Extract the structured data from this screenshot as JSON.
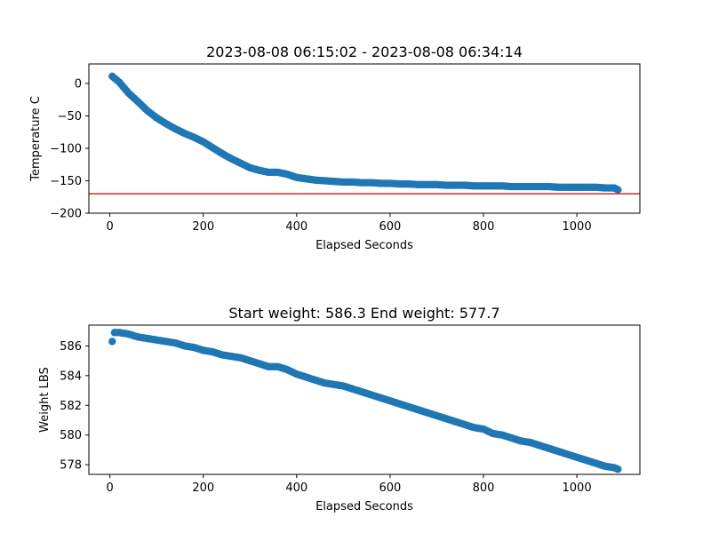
{
  "chart_data": [
    {
      "type": "scatter",
      "title": "2023-08-08 06:15:02 - 2023-08-08 06:34:14",
      "xlabel": "Elapsed Seconds",
      "ylabel": "Temperature C",
      "xlim": [
        -45,
        1135
      ],
      "ylim": [
        -200,
        30
      ],
      "xticks": [
        0,
        200,
        400,
        600,
        800,
        1000
      ],
      "yticks": [
        0,
        -50,
        -100,
        -150,
        -200
      ],
      "xtick_labels": [
        "0",
        "200",
        "400",
        "600",
        "800",
        "1000"
      ],
      "ytick_labels": [
        "0",
        "−50",
        "−100",
        "−150",
        "−200"
      ],
      "marker_color": "#1f77b4",
      "reference_line": {
        "y": -170,
        "color": "#d62728"
      },
      "x": [
        5,
        20,
        40,
        60,
        80,
        100,
        120,
        140,
        160,
        180,
        200,
        220,
        240,
        260,
        280,
        300,
        320,
        340,
        360,
        380,
        400,
        420,
        440,
        460,
        480,
        500,
        520,
        540,
        560,
        580,
        600,
        620,
        640,
        660,
        680,
        700,
        720,
        740,
        760,
        780,
        800,
        820,
        840,
        860,
        880,
        900,
        920,
        940,
        960,
        980,
        1000,
        1020,
        1040,
        1060,
        1080,
        1088
      ],
      "y": [
        11,
        2,
        -15,
        -28,
        -42,
        -53,
        -62,
        -70,
        -77,
        -83,
        -90,
        -99,
        -108,
        -116,
        -123,
        -130,
        -134,
        -137,
        -137,
        -140,
        -145,
        -147,
        -149,
        -150,
        -151,
        -152,
        -152,
        -153,
        -153,
        -154,
        -154,
        -155,
        -155,
        -156,
        -156,
        -156,
        -157,
        -157,
        -157,
        -158,
        -158,
        -158,
        -158,
        -159,
        -159,
        -159,
        -159,
        -159,
        -160,
        -160,
        -160,
        -160,
        -160,
        -161,
        -161,
        -164
      ]
    },
    {
      "type": "scatter",
      "title": "Start weight: 586.3 End weight: 577.7",
      "xlabel": "Elapsed Seconds",
      "ylabel": "Weight LBS",
      "xlim": [
        -45,
        1135
      ],
      "ylim": [
        577.35,
        587.4
      ],
      "xticks": [
        0,
        200,
        400,
        600,
        800,
        1000
      ],
      "yticks": [
        578,
        580,
        582,
        584,
        586
      ],
      "xtick_labels": [
        "0",
        "200",
        "400",
        "600",
        "800",
        "1000"
      ],
      "ytick_labels": [
        "578",
        "580",
        "582",
        "584",
        "586"
      ],
      "marker_color": "#1f77b4",
      "x": [
        5,
        10,
        20,
        40,
        60,
        80,
        100,
        120,
        140,
        160,
        180,
        200,
        220,
        240,
        260,
        280,
        300,
        320,
        340,
        360,
        380,
        400,
        420,
        440,
        460,
        480,
        500,
        520,
        540,
        560,
        580,
        600,
        620,
        640,
        660,
        680,
        700,
        720,
        740,
        760,
        780,
        800,
        820,
        840,
        860,
        880,
        900,
        920,
        940,
        960,
        980,
        1000,
        1020,
        1040,
        1060,
        1080,
        1088
      ],
      "y": [
        586.3,
        586.9,
        586.9,
        586.8,
        586.6,
        586.5,
        586.4,
        586.3,
        586.2,
        586.0,
        585.9,
        585.7,
        585.6,
        585.4,
        585.3,
        585.2,
        585.0,
        584.8,
        584.6,
        584.6,
        584.4,
        584.1,
        583.9,
        583.7,
        583.5,
        583.4,
        583.3,
        583.1,
        582.9,
        582.7,
        582.5,
        582.3,
        582.1,
        581.9,
        581.7,
        581.5,
        581.3,
        581.1,
        580.9,
        580.7,
        580.5,
        580.4,
        580.1,
        580.0,
        579.8,
        579.6,
        579.5,
        579.3,
        579.1,
        578.9,
        578.7,
        578.5,
        578.3,
        578.1,
        577.9,
        577.8,
        577.7
      ]
    }
  ]
}
